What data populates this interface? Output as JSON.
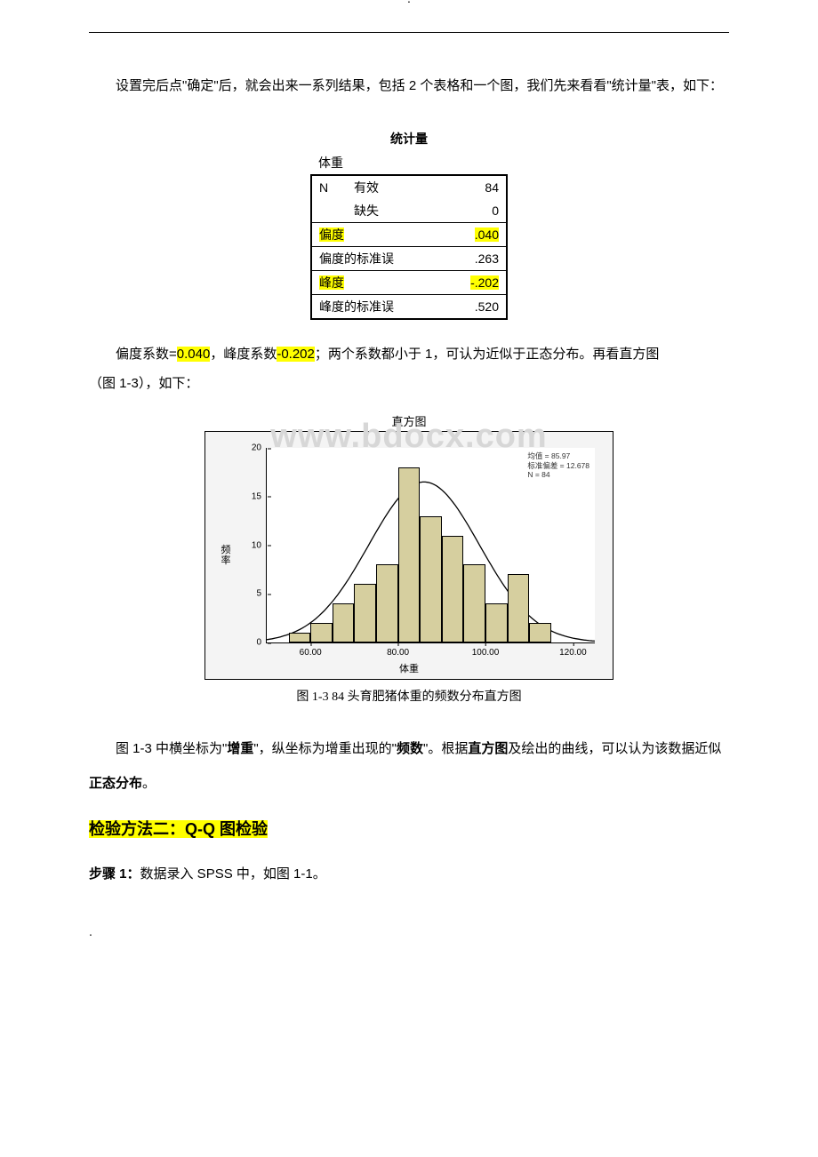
{
  "top_marker": ".",
  "intro": "设置完后点\"确定\"后，就会出来一系列结果，包括 2 个表格和一个图，我们先来看看\"统计量\"表，如下：",
  "stats": {
    "title": "统计量",
    "var_label": "体重",
    "rows": {
      "n_label": "N",
      "valid_label": "有效",
      "valid_val": "84",
      "missing_label": "缺失",
      "missing_val": "0",
      "skew_label": "偏度",
      "skew_val": ".040",
      "skew_se_label": "偏度的标准误",
      "skew_se_val": ".263",
      "kurt_label": "峰度",
      "kurt_val": "-.202",
      "kurt_se_label": "峰度的标准误",
      "kurt_se_val": ".520"
    }
  },
  "commentary": {
    "p1_a": "偏度系数=",
    "p1_skew": "0.040",
    "p1_b": "，峰度系数",
    "p1_kurt": "-0.202",
    "p1_c": "；两个系数都小于 1，可认为近似于正态分布。再看直方图",
    "p1_d": "（图 1-3），如下：",
    "p2_a": "图 1-3 中横坐标为\"",
    "p2_x": "增重",
    "p2_b": "\"，纵坐标为增重出现的\"",
    "p2_y": "频数",
    "p2_c": "\"。根据",
    "p2_hist": "直方图",
    "p2_d": "及绘出的曲线，可以认为该数据近似",
    "p2_norm": "正态分布",
    "p2_e": "。"
  },
  "chart": {
    "title": "直方图",
    "watermark": "www.bdocx.com",
    "ylabel": "频\n率",
    "xlabel": "体重",
    "legend_mean": "均值 = 85.97",
    "legend_sd": "标准偏差 = 12.678",
    "legend_n": "N = 84",
    "xmin": 50,
    "xmax": 125,
    "ymax": 20,
    "xticks": [
      60,
      80,
      100,
      120
    ],
    "xtick_labels": [
      "60.00",
      "80.00",
      "100.00",
      "120.00"
    ],
    "yticks": [
      0,
      5,
      10,
      15,
      20
    ],
    "bar_bin_width": 5,
    "bars": [
      {
        "x": 57.5,
        "h": 1
      },
      {
        "x": 62.5,
        "h": 2
      },
      {
        "x": 67.5,
        "h": 4
      },
      {
        "x": 72.5,
        "h": 6
      },
      {
        "x": 77.5,
        "h": 8
      },
      {
        "x": 82.5,
        "h": 18
      },
      {
        "x": 87.5,
        "h": 13
      },
      {
        "x": 92.5,
        "h": 11
      },
      {
        "x": 97.5,
        "h": 8
      },
      {
        "x": 102.5,
        "h": 4
      },
      {
        "x": 107.5,
        "h": 7
      },
      {
        "x": 112.5,
        "h": 2
      }
    ],
    "bar_color": "#d6cf9f",
    "bar_border": "#000000",
    "bg_color": "#f4f4f4",
    "plot_bg": "#ffffff",
    "curve_color": "#000000",
    "curve_peak_x": 85.97,
    "curve_peak_y": 16.5,
    "caption": "图 1-3 84 头育肥猪体重的频数分布直方图"
  },
  "method2_heading": "检验方法二：Q-Q 图检验",
  "step1_label": "步骤 1：",
  "step1_text": "数据录入 SPSS 中，如图 1-1。",
  "bottom_marker": "."
}
